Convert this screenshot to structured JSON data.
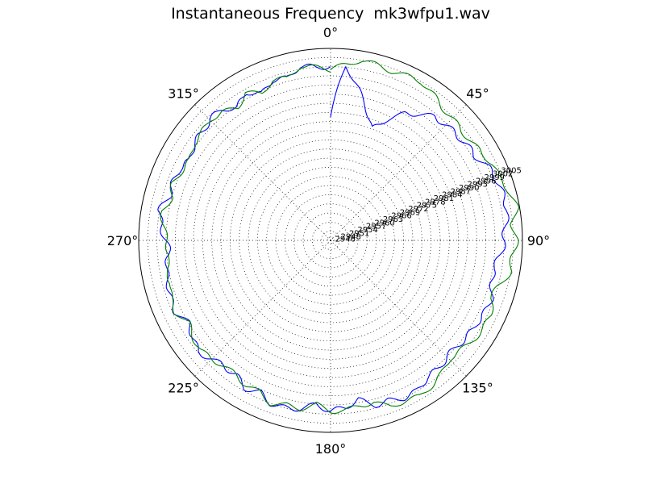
{
  "chart_data": {
    "type": "line",
    "projection": "polar",
    "title": "Instantaneous Frequency  mk3wfpu1.wav",
    "theta_direction": "clockwise",
    "theta_zero_location": "top",
    "angle_ticks": [
      0,
      45,
      90,
      135,
      180,
      225,
      270,
      315
    ],
    "angle_labels": [
      "0°",
      "45°",
      "90°",
      "135°",
      "180°",
      "225°",
      "270°",
      "315°"
    ],
    "rlim": [
      2945,
      3008
    ],
    "radial_ticks": [
      2946,
      2948,
      2951,
      2954,
      2957,
      2960,
      2963,
      2966,
      2969,
      2972,
      2975,
      2978,
      2981,
      2984,
      2987,
      2990,
      2993,
      2996,
      2999,
      3002,
      3005
    ],
    "radial_tick_labels": [
      "2946",
      "2948",
      "2951",
      "2954",
      "2957",
      "2960",
      "2963",
      "2966",
      "2969",
      "2972",
      "2975",
      "2978",
      "2981",
      "2984",
      "2987",
      "2990",
      "2993",
      "2996",
      "2999",
      "3002",
      "3005"
    ],
    "radial_label_angle": 67.5,
    "grid": true,
    "series": [
      {
        "color": "#0000ff",
        "points": [
          [
            0,
            2985.5
          ],
          [
            5,
            3002.5
          ],
          [
            10,
            2996
          ],
          [
            20,
            2984
          ],
          [
            30,
            2993
          ],
          [
            40,
            2998
          ],
          [
            50,
            2999
          ],
          [
            60,
            3000
          ],
          [
            65,
            3002
          ],
          [
            70,
            3003
          ],
          [
            75,
            3003.5
          ],
          [
            80,
            3004
          ],
          [
            85,
            3002.5
          ],
          [
            90,
            3002
          ],
          [
            95,
            3001
          ],
          [
            100,
            2999
          ],
          [
            105,
            3000
          ],
          [
            110,
            3001
          ],
          [
            115,
            3001
          ],
          [
            120,
            3000
          ],
          [
            125,
            3000
          ],
          [
            130,
            2999
          ],
          [
            135,
            2999
          ],
          [
            140,
            3000
          ],
          [
            145,
            3000
          ],
          [
            150,
            3002
          ],
          [
            155,
            3002
          ],
          [
            160,
            3001
          ],
          [
            165,
            3001
          ],
          [
            170,
            2998
          ],
          [
            175,
            3000
          ],
          [
            180,
            3001
          ],
          [
            185,
            2999
          ],
          [
            190,
            3001
          ],
          [
            195,
            3002
          ],
          [
            200,
            3002
          ],
          [
            205,
            3000
          ],
          [
            210,
            3001
          ],
          [
            215,
            2999
          ],
          [
            220,
            2999
          ],
          [
            225,
            3000
          ],
          [
            230,
            3002
          ],
          [
            235,
            3000
          ],
          [
            240,
            2999
          ],
          [
            245,
            3001
          ],
          [
            250,
            3001
          ],
          [
            255,
            3000
          ],
          [
            260,
            3000
          ],
          [
            265,
            2998
          ],
          [
            270,
            2999
          ],
          [
            275,
            3001
          ],
          [
            280,
            3002
          ],
          [
            285,
            3000
          ],
          [
            290,
            3000
          ],
          [
            295,
            3000
          ],
          [
            300,
            2998
          ],
          [
            305,
            3000
          ],
          [
            310,
            3000
          ],
          [
            315,
            3001
          ],
          [
            320,
            3001
          ],
          [
            325,
            2998
          ],
          [
            330,
            3001
          ],
          [
            335,
            2998
          ],
          [
            340,
            3001
          ],
          [
            345,
            3000
          ],
          [
            350,
            3003
          ],
          [
            355,
            3002
          ],
          [
            360,
            3002
          ]
        ],
        "wiggle": [
          0.9,
          9
        ]
      },
      {
        "color": "#008000",
        "points": [
          [
            0,
            3001
          ],
          [
            10,
            3005
          ],
          [
            20,
            3004
          ],
          [
            30,
            3005
          ],
          [
            40,
            3002
          ],
          [
            50,
            3001
          ],
          [
            60,
            3002
          ],
          [
            65,
            3004
          ],
          [
            70,
            3004
          ],
          [
            75,
            3006
          ],
          [
            80,
            3007
          ],
          [
            85,
            3005
          ],
          [
            90,
            3006
          ],
          [
            95,
            3005
          ],
          [
            100,
            3005
          ],
          [
            105,
            3002
          ],
          [
            110,
            3001
          ],
          [
            115,
            3003
          ],
          [
            120,
            3003
          ],
          [
            125,
            3002
          ],
          [
            130,
            3001
          ],
          [
            135,
            3000
          ],
          [
            140,
            3002
          ],
          [
            145,
            3003
          ],
          [
            150,
            3004
          ],
          [
            155,
            3003
          ],
          [
            160,
            3003
          ],
          [
            165,
            3000
          ],
          [
            170,
            3000
          ],
          [
            175,
            3001
          ],
          [
            180,
            3001
          ],
          [
            185,
            2999
          ],
          [
            190,
            3001
          ],
          [
            195,
            3001
          ],
          [
            200,
            3002
          ],
          [
            205,
            3000
          ],
          [
            210,
            3000
          ],
          [
            215,
            2999
          ],
          [
            220,
            2999
          ],
          [
            225,
            3000
          ],
          [
            230,
            3001
          ],
          [
            235,
            3000
          ],
          [
            240,
            2999
          ],
          [
            245,
            3001
          ],
          [
            250,
            3001
          ],
          [
            255,
            2999
          ],
          [
            260,
            3000
          ],
          [
            265,
            2998
          ],
          [
            270,
            2999
          ],
          [
            275,
            3000
          ],
          [
            280,
            3001
          ],
          [
            285,
            2999
          ],
          [
            290,
            3000
          ],
          [
            295,
            2999
          ],
          [
            300,
            2998
          ],
          [
            305,
            3000
          ],
          [
            310,
            3000
          ],
          [
            315,
            3001
          ],
          [
            320,
            3000
          ],
          [
            325,
            2998
          ],
          [
            330,
            3001
          ],
          [
            335,
            2998
          ],
          [
            340,
            3001
          ],
          [
            345,
            3000
          ],
          [
            350,
            3003
          ],
          [
            355,
            3002
          ],
          [
            360,
            3001
          ]
        ],
        "wiggle": [
          0.8,
          11
        ]
      }
    ]
  }
}
